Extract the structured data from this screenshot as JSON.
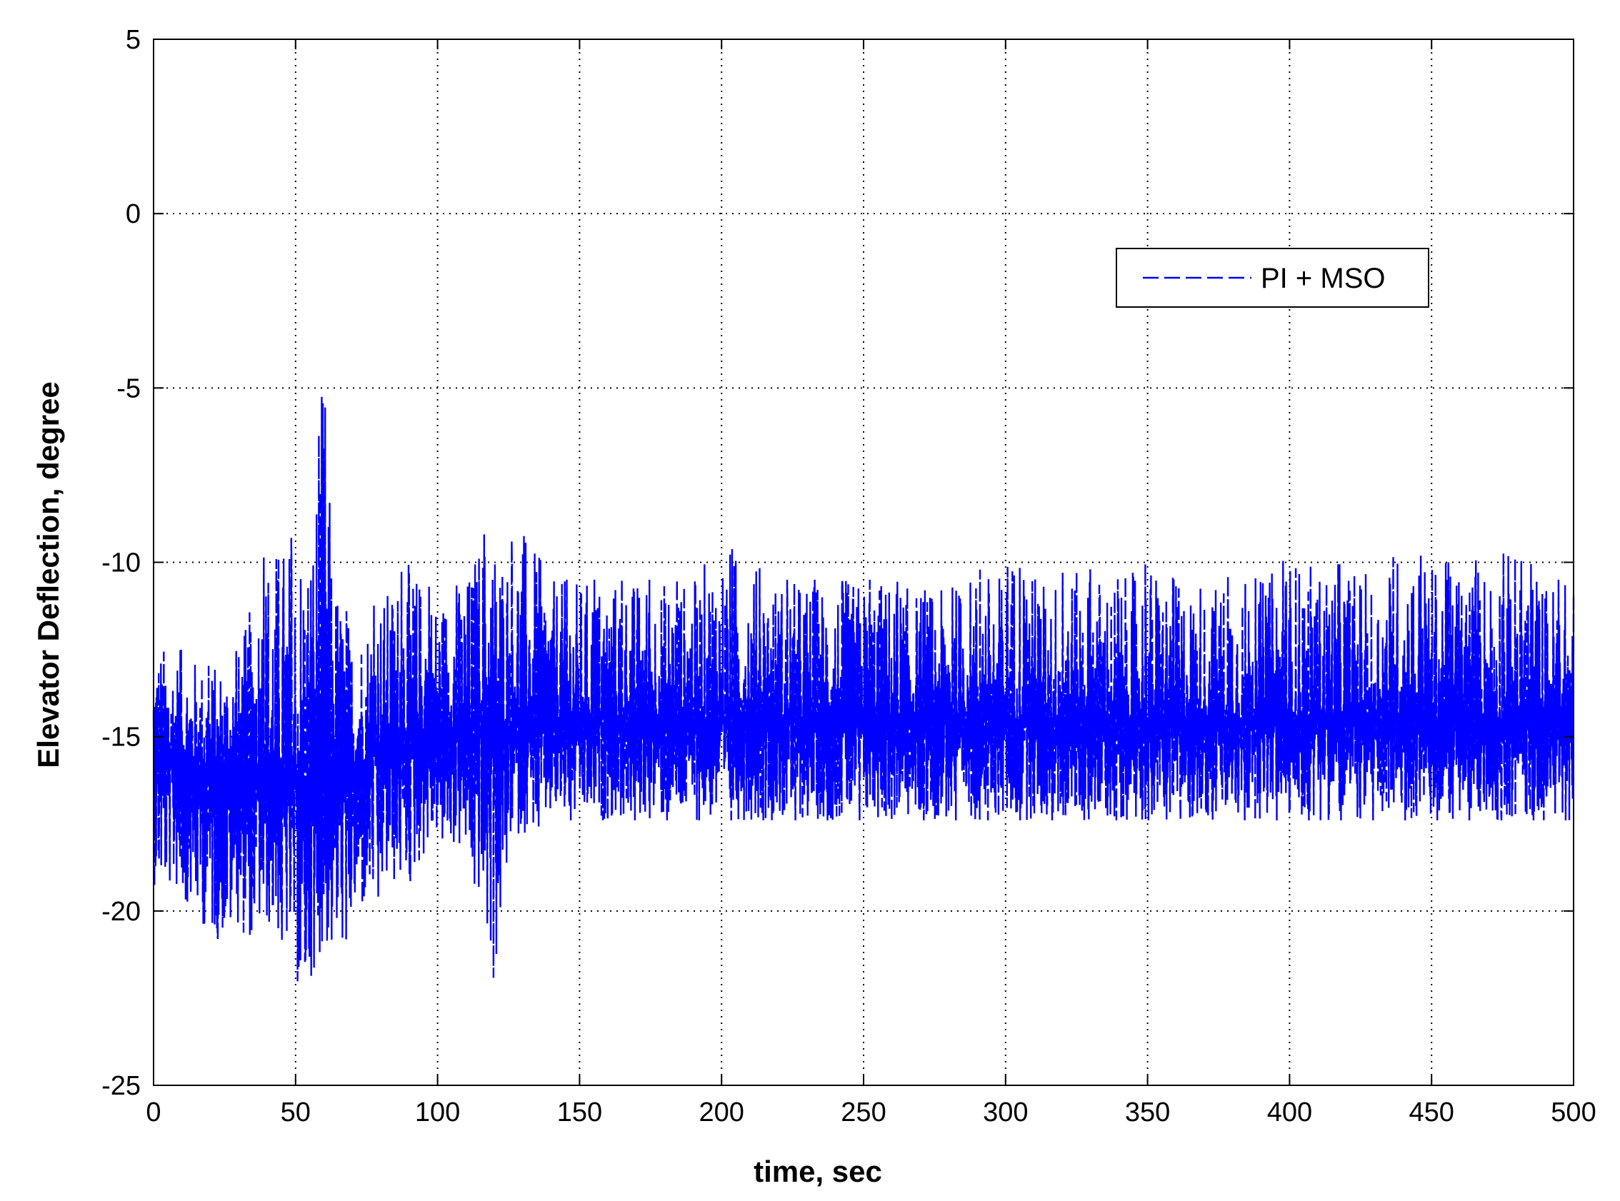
{
  "chart_data": {
    "type": "line",
    "title": "",
    "xlabel": "time, sec",
    "ylabel": "Elevator Deflection, degree",
    "xlim": [
      0,
      500
    ],
    "ylim": [
      -25,
      5
    ],
    "xticks": [
      0,
      50,
      100,
      150,
      200,
      250,
      300,
      350,
      400,
      450,
      500
    ],
    "yticks": [
      5,
      0,
      -5,
      -10,
      -15,
      -20,
      -25
    ],
    "grid": true,
    "legend_position": "upper-right",
    "line_color": "#0000ff",
    "series": [
      {
        "name": "PI + MSO",
        "line_style": "dashed",
        "x": [
          0,
          10,
          20,
          30,
          40,
          45,
          50,
          52,
          55,
          57,
          60,
          63,
          70,
          80,
          90,
          100,
          110,
          115,
          120,
          125,
          130,
          140,
          150,
          160,
          170,
          180,
          190,
          200,
          210,
          220,
          230,
          240,
          250,
          260,
          270,
          280,
          290,
          300,
          305,
          310,
          320,
          330,
          340,
          350,
          360,
          370,
          380,
          390,
          400,
          410,
          420,
          430,
          440,
          450,
          460,
          470,
          480,
          490,
          500
        ],
        "y_mean": [
          -15.5,
          -15.8,
          -16.0,
          -16.0,
          -16.2,
          -16.0,
          -16.5,
          -16.8,
          -16.5,
          -16.2,
          -15.8,
          -16.0,
          -16.0,
          -15.2,
          -15.0,
          -14.8,
          -14.7,
          -14.8,
          -14.6,
          -14.6,
          -14.5,
          -14.6,
          -14.5,
          -14.5,
          -14.5,
          -14.5,
          -14.5,
          -14.5,
          -14.5,
          -14.5,
          -14.5,
          -14.5,
          -14.5,
          -14.5,
          -14.5,
          -14.5,
          -14.5,
          -14.5,
          -14.5,
          -14.5,
          -14.5,
          -14.5,
          -14.5,
          -14.5,
          -14.5,
          -14.5,
          -14.5,
          -14.5,
          -14.5,
          -14.5,
          -14.5,
          -14.5,
          -14.5,
          -14.5,
          -14.5,
          -14.5,
          -14.5,
          -14.5,
          -14.5
        ],
        "y_max": [
          -12.3,
          -12.5,
          -13.0,
          -12.5,
          -9.5,
          -9.3,
          -9.3,
          -9.0,
          -9.0,
          -8.0,
          -3.9,
          -10.0,
          -12.0,
          -11.0,
          -10.0,
          -11.0,
          -10.5,
          -9.2,
          -9.2,
          -9.5,
          -9.0,
          -10.5,
          -10.5,
          -10.5,
          -10.5,
          -10.5,
          -10.5,
          -9.4,
          -10.0,
          -10.5,
          -10.5,
          -10.5,
          -10.5,
          -10.5,
          -10.8,
          -10.8,
          -10.2,
          -10.3,
          -9.1,
          -10.5,
          -10.3,
          -10.2,
          -10.5,
          -10.0,
          -10.5,
          -10.8,
          -10.3,
          -10.5,
          -9.8,
          -10.2,
          -10.0,
          -10.5,
          -9.5,
          -10.0,
          -10.0,
          -9.9,
          -9.6,
          -10.5,
          -10.5
        ],
        "y_min": [
          -19.3,
          -19.5,
          -20.8,
          -20.8,
          -20.5,
          -20.8,
          -21.5,
          -23.5,
          -22.0,
          -21.5,
          -21.0,
          -21.5,
          -20.5,
          -19.5,
          -19.2,
          -17.8,
          -18.5,
          -19.7,
          -22.4,
          -18.0,
          -17.8,
          -17.4,
          -17.4,
          -17.4,
          -17.4,
          -17.4,
          -17.4,
          -17.4,
          -17.4,
          -17.4,
          -17.4,
          -17.4,
          -17.4,
          -17.4,
          -17.4,
          -17.4,
          -17.4,
          -17.4,
          -17.4,
          -17.4,
          -17.4,
          -17.4,
          -17.4,
          -17.4,
          -17.4,
          -17.4,
          -17.4,
          -17.4,
          -17.4,
          -17.4,
          -17.4,
          -17.4,
          -17.4,
          -17.4,
          -17.4,
          -17.4,
          -17.4,
          -17.4,
          -17.4
        ]
      }
    ]
  }
}
